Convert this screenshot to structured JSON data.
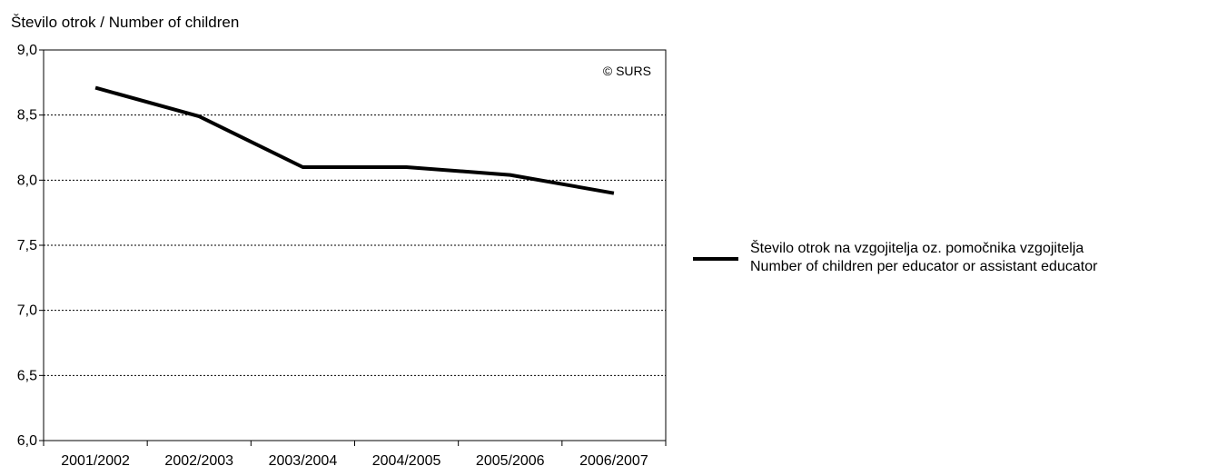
{
  "chart_data": {
    "type": "line",
    "ylabel": "Število otrok / Number of children",
    "xlabel": "",
    "categories": [
      "2001/2002",
      "2002/2003",
      "2003/2004",
      "2004/2005",
      "2005/2006",
      "2006/2007"
    ],
    "series": [
      {
        "name_line1": "Število otrok na vzgojitelja oz. pomočnika vzgojitelja",
        "name_line2": "Number of children per educator or assistant educator",
        "values": [
          8.71,
          8.49,
          8.1,
          8.1,
          8.04,
          7.9
        ],
        "color": "#000000"
      }
    ],
    "ylim": [
      6.0,
      9.0
    ],
    "yticks": [
      6.0,
      6.5,
      7.0,
      7.5,
      8.0,
      8.5,
      9.0
    ],
    "ytick_labels": [
      "6,0",
      "6,5",
      "7,0",
      "7,5",
      "8,0",
      "8,5",
      "9,0"
    ],
    "grid": "horizontal dotted",
    "legend_position": "right",
    "copyright": "© SURS"
  }
}
